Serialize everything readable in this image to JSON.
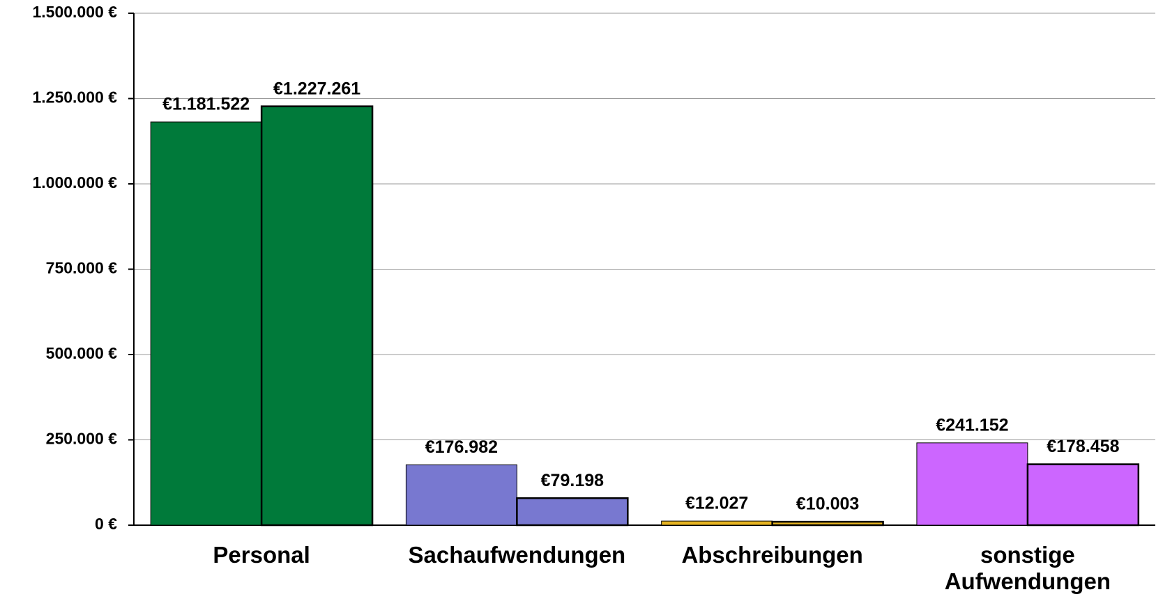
{
  "chart_data": {
    "type": "bar",
    "categories": [
      "Personal",
      "Sachaufwendungen",
      "Abschreibungen",
      "sonstige Aufwendungen"
    ],
    "colors": [
      "#007a3a",
      "#7878d0",
      "#e6b422",
      "#cc66ff"
    ],
    "series": [
      {
        "values": [
          1181522,
          176982,
          12027,
          241152
        ],
        "value_labels": [
          "€1.181.522",
          "€176.982",
          "€12.027",
          "€241.152"
        ]
      },
      {
        "values": [
          1227261,
          79198,
          10003,
          178458
        ],
        "value_labels": [
          "€1.227.261",
          "€79.198",
          "€10.003",
          "€178.458"
        ]
      }
    ],
    "ylim": [
      0,
      1500000
    ],
    "yticks": [
      {
        "value": 0,
        "label": "0 €"
      },
      {
        "value": 250000,
        "label": "250.000 €"
      },
      {
        "value": 500000,
        "label": "500.000 €"
      },
      {
        "value": 750000,
        "label": "750.000 €"
      },
      {
        "value": 1000000,
        "label": "1.000.000 €"
      },
      {
        "value": 1250000,
        "label": "1.250.000 €"
      },
      {
        "value": 1500000,
        "label": "1.500.000 €"
      }
    ],
    "grid": true
  }
}
